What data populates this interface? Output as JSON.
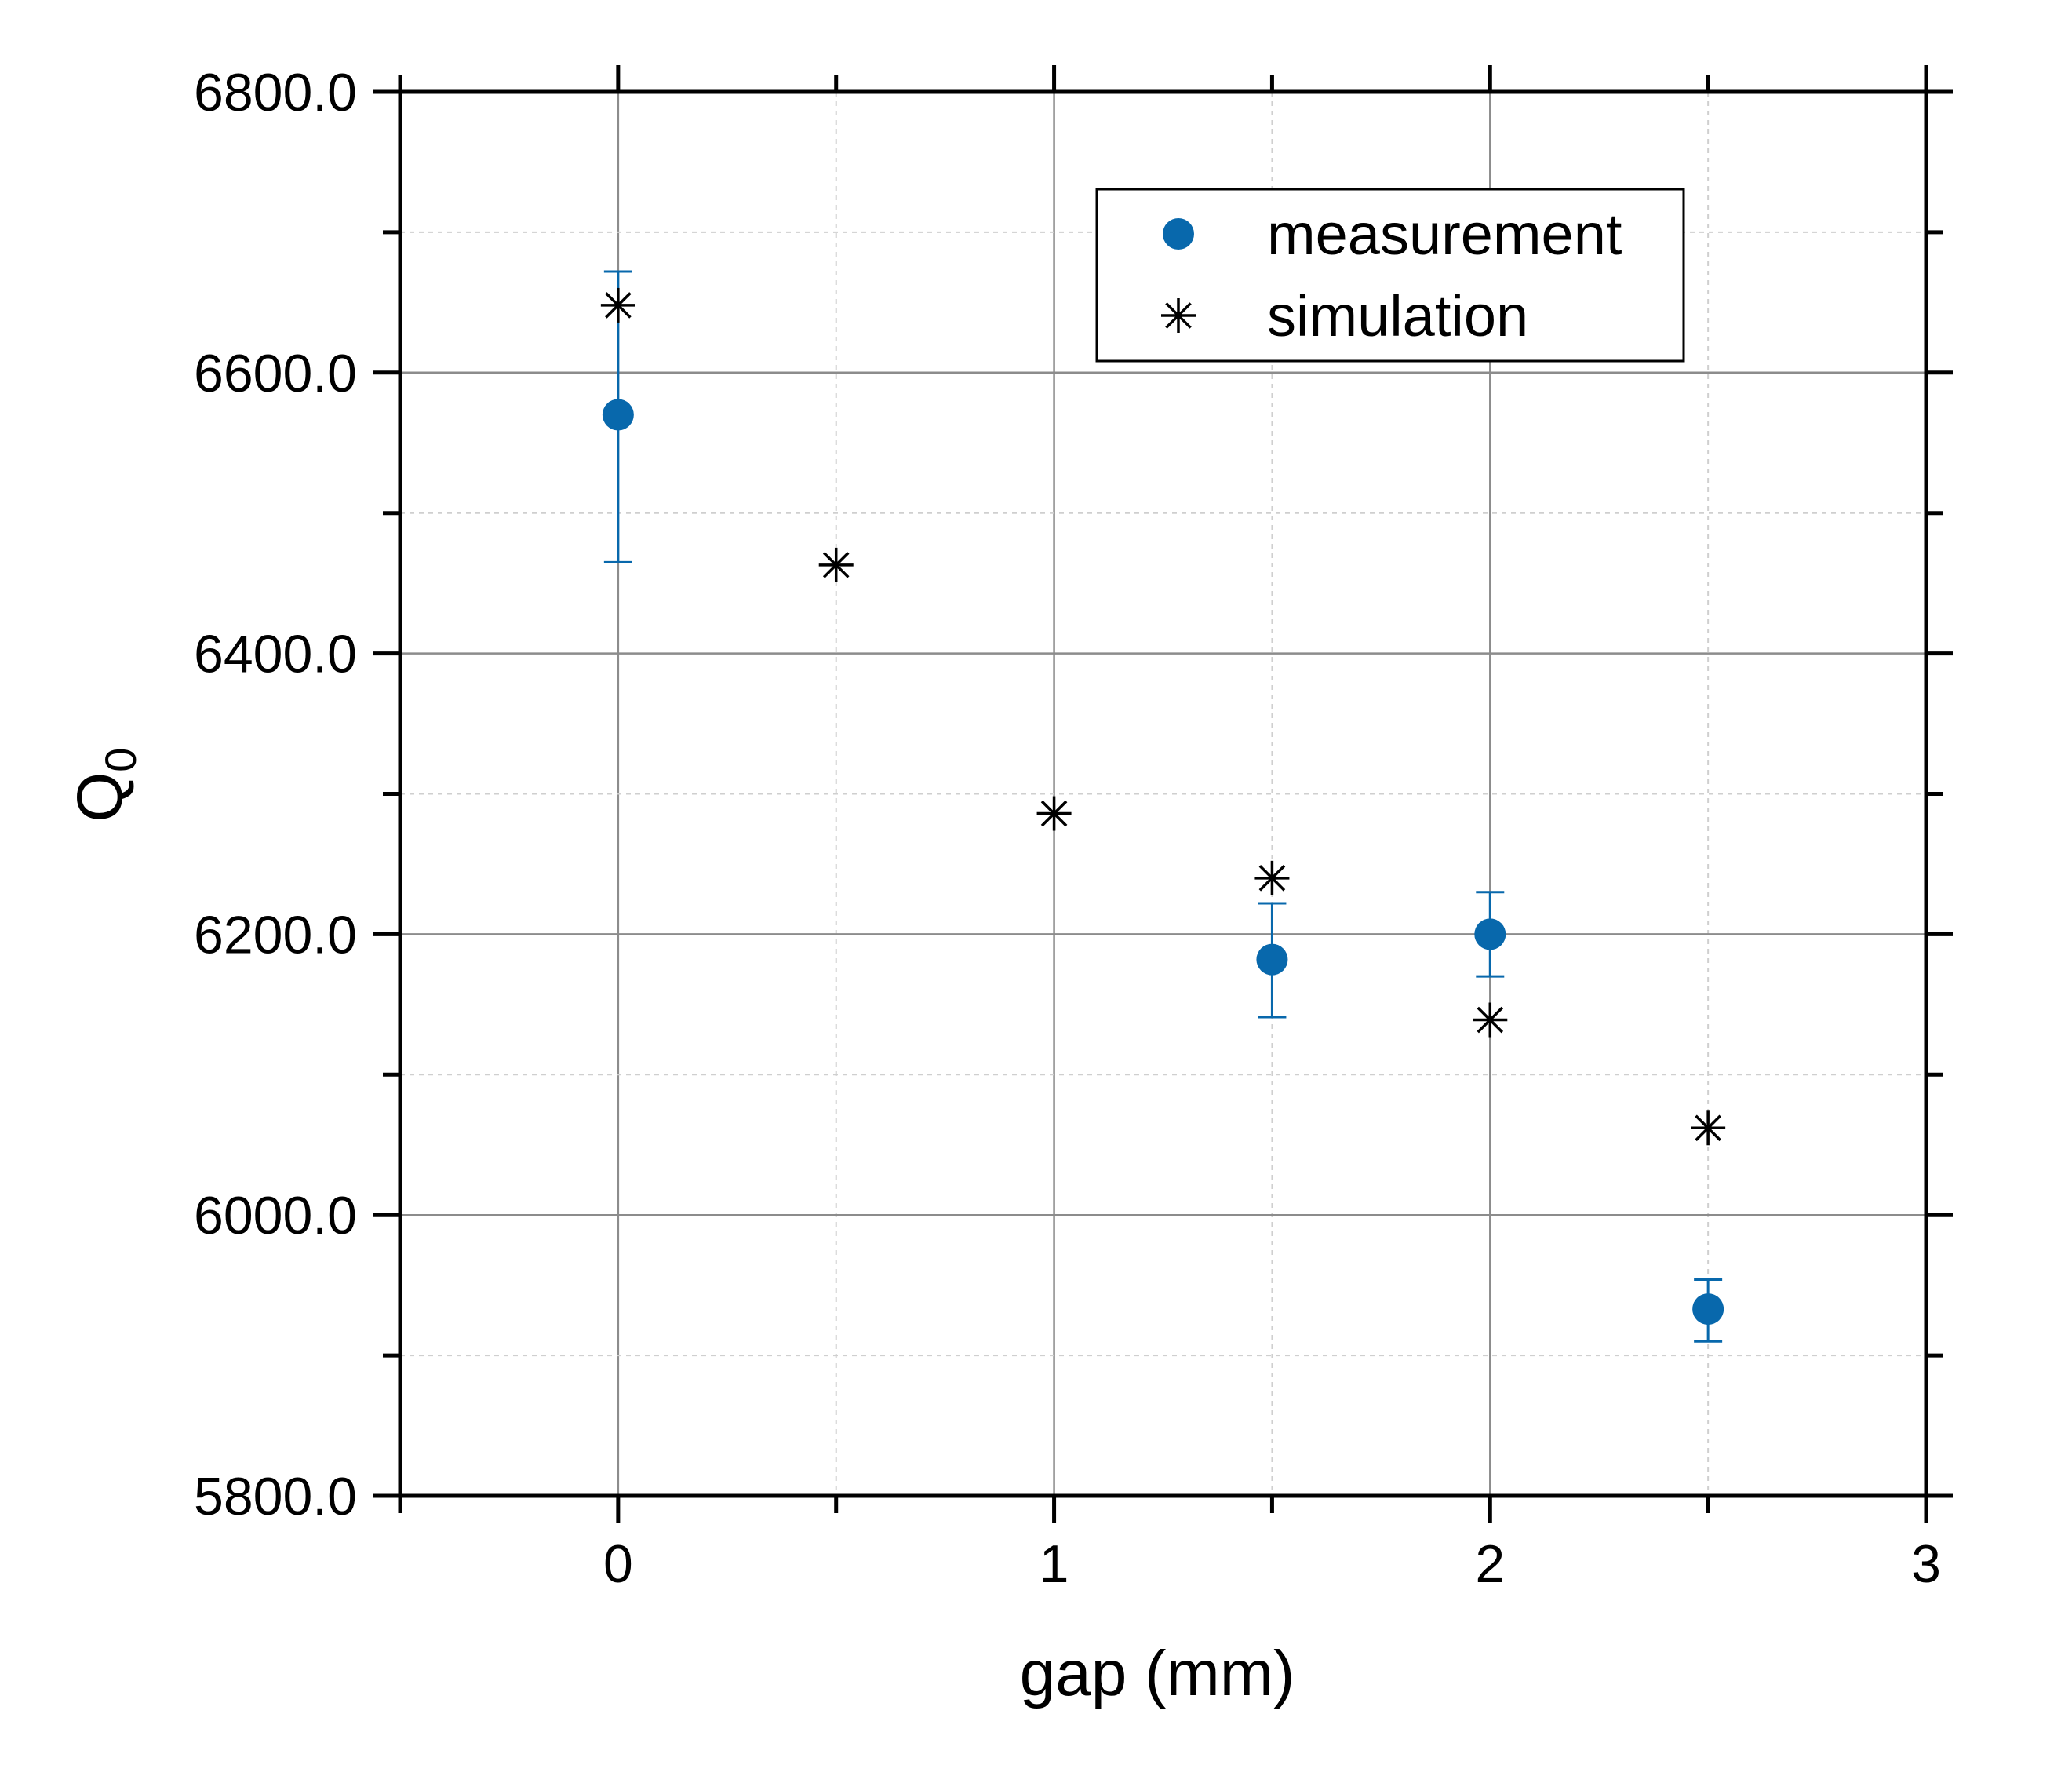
{
  "chart_data": {
    "type": "scatter",
    "xlabel": "gap (mm)",
    "ylabel": "Q",
    "ylabel_subscript": "0",
    "xlim": [
      -0.5,
      3
    ],
    "ylim": [
      5800,
      6800
    ],
    "x_ticks": [
      0,
      1,
      2,
      3
    ],
    "x_tick_labels": [
      "0",
      "1",
      "2",
      "3"
    ],
    "x_minor_ticks": [
      -0.5,
      0.5,
      1.5,
      2.5
    ],
    "y_ticks": [
      5800,
      6000,
      6200,
      6400,
      6600,
      6800
    ],
    "y_tick_labels": [
      "5800.0",
      "6000.0",
      "6200.0",
      "6400.0",
      "6600.0",
      "6800.0"
    ],
    "y_minor_ticks": [
      5900,
      6100,
      6300,
      6500,
      6700
    ],
    "grid": true,
    "legend_position": "top-right",
    "series": [
      {
        "name": "measurement",
        "marker": "filled-circle",
        "color": "#0868AC",
        "points": [
          {
            "x": 0,
            "y": 6570,
            "err_low": 6465,
            "err_high": 6672
          },
          {
            "x": 1.5,
            "y": 6182,
            "err_low": 6141,
            "err_high": 6222
          },
          {
            "x": 2,
            "y": 6200,
            "err_low": 6170,
            "err_high": 6230
          },
          {
            "x": 2.5,
            "y": 5933,
            "err_low": 5910,
            "err_high": 5954
          }
        ]
      },
      {
        "name": "simulation",
        "marker": "asterisk",
        "color": "#000000",
        "points": [
          {
            "x": 0,
            "y": 6648
          },
          {
            "x": 0.5,
            "y": 6463
          },
          {
            "x": 1,
            "y": 6286
          },
          {
            "x": 1.5,
            "y": 6240
          },
          {
            "x": 2,
            "y": 6139
          },
          {
            "x": 2.5,
            "y": 6062
          }
        ]
      }
    ]
  }
}
